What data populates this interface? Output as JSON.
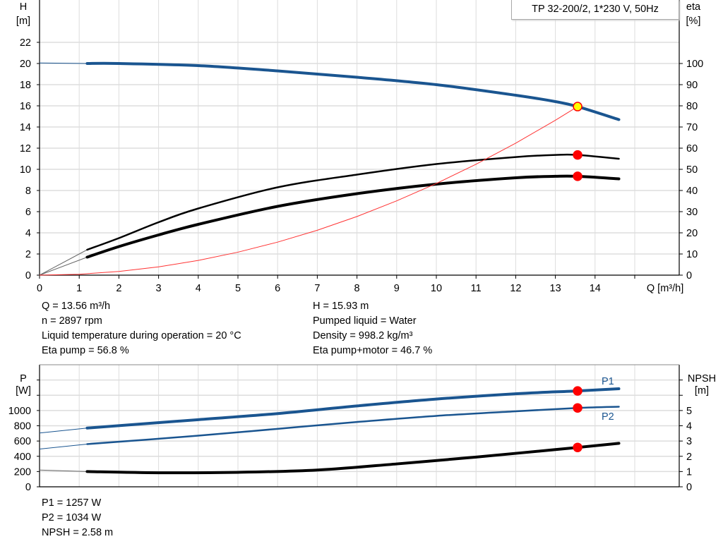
{
  "chart_data": [
    {
      "type": "line",
      "title": "TP 32-200/2, 1*230 V, 50Hz",
      "xlabel": "Q [m³/h]",
      "xlim": [
        0,
        16
      ],
      "xticks": [
        0,
        1,
        2,
        3,
        4,
        5,
        6,
        7,
        8,
        9,
        10,
        11,
        12,
        13,
        14
      ],
      "ylabel": "H",
      "yunit": "[m]",
      "ylim": [
        0,
        26
      ],
      "yticks": [
        0,
        2,
        4,
        6,
        8,
        10,
        12,
        14,
        16,
        18,
        20,
        22
      ],
      "y2label": "eta",
      "y2unit": "[%]",
      "y2lim": [
        0,
        130
      ],
      "y2ticks": [
        0,
        10,
        20,
        30,
        40,
        50,
        60,
        70,
        80,
        90,
        100
      ],
      "grid": true,
      "series": [
        {
          "key": "H",
          "axis": "left",
          "color": "#1a5590",
          "x": [
            0,
            1.2,
            2,
            4,
            6,
            8,
            10,
            12,
            13,
            13.56,
            14.6
          ],
          "y": [
            20.05,
            20.0,
            20.0,
            19.8,
            19.3,
            18.7,
            18.0,
            17.0,
            16.4,
            15.93,
            14.7
          ]
        },
        {
          "key": "eta_pump",
          "axis": "right",
          "color": "#000000",
          "x": [
            0,
            1.2,
            2,
            3,
            4,
            6,
            8,
            10,
            12,
            13,
            13.56,
            14.6
          ],
          "y": [
            0,
            12,
            17.5,
            25,
            31.5,
            41.5,
            47.5,
            52.5,
            55.8,
            56.8,
            56.8,
            55
          ]
        },
        {
          "key": "eta_total",
          "axis": "right",
          "color": "#000000",
          "x": [
            0,
            1.2,
            2,
            3,
            4,
            6,
            8,
            10,
            12,
            13,
            13.56,
            14.6
          ],
          "y": [
            0,
            8.5,
            13.5,
            19,
            24,
            32.5,
            38.5,
            43,
            46,
            46.7,
            46.7,
            45.5
          ]
        },
        {
          "key": "system_curve",
          "axis": "left",
          "color": "#ff3333",
          "x": [
            0,
            1,
            2,
            3,
            4,
            5,
            6,
            7,
            8,
            9,
            10,
            11,
            12,
            13,
            13.56
          ],
          "y": [
            0,
            0.087,
            0.35,
            0.78,
            1.39,
            2.17,
            3.12,
            4.24,
            5.54,
            7.02,
            8.66,
            10.48,
            12.47,
            14.64,
            15.93
          ]
        }
      ],
      "operating_points": [
        {
          "x": 13.56,
          "y": 15.93,
          "axis": "left",
          "fill": "#ffff00"
        },
        {
          "x": 13.56,
          "y": 56.8,
          "axis": "right",
          "fill": "#ff0000"
        },
        {
          "x": 13.56,
          "y": 46.7,
          "axis": "right",
          "fill": "#ff0000"
        }
      ]
    },
    {
      "type": "line",
      "ylabel": "P",
      "yunit": "[W]",
      "ylim": [
        0,
        1600
      ],
      "yticks": [
        0,
        200,
        400,
        600,
        800,
        1000,
        1200,
        1400
      ],
      "ytick_labels": [
        "0",
        "200",
        "400",
        "600",
        "800",
        "1000",
        "",
        ""
      ],
      "y2label": "NPSH",
      "y2unit": "[m]",
      "y2lim": [
        0,
        8
      ],
      "y2ticks": [
        0,
        1,
        2,
        3,
        4,
        5,
        6,
        7
      ],
      "y2tick_labels": [
        "0",
        "1",
        "2",
        "3",
        "4",
        "5",
        "",
        ""
      ],
      "xlim": [
        0,
        16
      ],
      "grid": true,
      "series": [
        {
          "name": "P1",
          "axis": "left",
          "color": "#1a5590",
          "x": [
            0,
            1.2,
            4,
            6,
            8,
            10,
            12,
            13.56,
            14.6
          ],
          "y": [
            705,
            770,
            880,
            960,
            1060,
            1150,
            1220,
            1257,
            1285
          ]
        },
        {
          "name": "P2",
          "axis": "left",
          "color": "#1a5590",
          "x": [
            0,
            1.2,
            4,
            6,
            8,
            10,
            12,
            13.56,
            14.6
          ],
          "y": [
            495,
            560,
            670,
            760,
            850,
            930,
            990,
            1034,
            1050
          ]
        },
        {
          "key": "NPSH",
          "axis": "right",
          "color": "#000000",
          "x": [
            0,
            1.2,
            3,
            5,
            7,
            9,
            11,
            13.56,
            14.6
          ],
          "y": [
            1.1,
            1.0,
            0.92,
            0.95,
            1.1,
            1.5,
            1.95,
            2.58,
            2.85
          ]
        }
      ],
      "operating_points": [
        {
          "x": 13.56,
          "y": 1257,
          "axis": "left"
        },
        {
          "x": 13.56,
          "y": 1034,
          "axis": "left"
        },
        {
          "x": 13.56,
          "y": 2.58,
          "axis": "right"
        }
      ]
    }
  ],
  "info_top": {
    "left": [
      "Q = 13.56 m³/h",
      "n = 2897 rpm",
      "Liquid temperature during operation = 20 °C",
      "Eta pump = 56.8 %"
    ],
    "right": [
      "H = 15.93 m",
      "Pumped liquid = Water",
      "Density = 998.2 kg/m³",
      "Eta pump+motor = 46.7 %"
    ]
  },
  "info_bottom": [
    "P1 = 1257 W",
    "P2 = 1034 W",
    "NPSH = 2.58 m"
  ]
}
